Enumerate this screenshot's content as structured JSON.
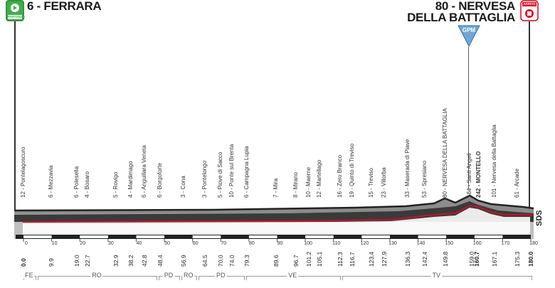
{
  "header": {
    "start_name": "6 - FERRARA",
    "finish_name_line1": "80 - NERVESA",
    "finish_name_line2": "DELLA BATTAGLIA",
    "start_badge_label": "PARTENZA",
    "finish_badge_label": "ARRIVO",
    "gpm_label": "GPM",
    "sds_label": "SDS"
  },
  "colors": {
    "start_badge": "#3fae49",
    "finish_badge": "#e2001a",
    "profile_gray": "#8c8c8c",
    "profile_dark": "#3a3a3a",
    "road_red": "#c8102e",
    "gpm_blue": "#6fa8d8"
  },
  "waypoints": [
    {
      "label": "12 - Pontelagoscuro",
      "km": 0.0
    },
    {
      "label": "6 - Mezzavia",
      "km": 9.9
    },
    {
      "label": "6 - Polesella",
      "km": 19.0
    },
    {
      "label": "4 - Bosaro",
      "km": 22.7
    },
    {
      "label": "5 - Rovigo",
      "km": 32.9
    },
    {
      "label": "4 - Mardimago",
      "km": 38.2
    },
    {
      "label": "6 - Anguillara Veneta",
      "km": 42.8
    },
    {
      "label": "6 - Borgoforte",
      "km": 48.4
    },
    {
      "label": "3 - Cona",
      "km": 56.9
    },
    {
      "label": "3 - Pontelongo",
      "km": 64.5
    },
    {
      "label": "5 - Piove di Sacco",
      "km": 70.0
    },
    {
      "label": "10 - Ponte sul Brenta",
      "km": 74.0
    },
    {
      "label": "6 - Campagna Lupia",
      "km": 79.3
    },
    {
      "label": "7 - Mira",
      "km": 89.6
    },
    {
      "label": "8 - Mirano",
      "km": 96.7
    },
    {
      "label": "10 - Maerne",
      "km": 101.2
    },
    {
      "label": "12 - Martellago",
      "km": 105.1
    },
    {
      "label": "16 - Zero Branco",
      "km": 112.3
    },
    {
      "label": "19 - Quinto di Treviso",
      "km": 116.7
    },
    {
      "label": "15 - Treviso",
      "km": 123.4
    },
    {
      "label": "23 - Villorba",
      "km": 127.9
    },
    {
      "label": "33 - Maserada di Piave",
      "km": 136.3
    },
    {
      "label": "53 - Spresiano",
      "km": 142.4
    },
    {
      "label": "80 - NERVESA DELLA BATTAGLIA",
      "km": 149.8
    },
    {
      "label": "184 - Santi Angeli",
      "km": 159.0
    },
    {
      "label": "242 - MONTELLO",
      "km": 160.7
    },
    {
      "label": "101 - Nervesa della Battaglia",
      "km": 167.1
    },
    {
      "label": "61 - Arcade",
      "km": 175.3
    },
    {
      "label": "",
      "km": 180.0
    }
  ],
  "km_labels": [
    "0.0",
    "9.9",
    "19.0",
    "22.7",
    "32.9",
    "38.2",
    "42.8",
    "48.4",
    "56.9",
    "64.5",
    "70.0",
    "74.0",
    "79.3",
    "89.6",
    "96.7",
    "101.2",
    "105.1",
    "112.3",
    "116.7",
    "123.4",
    "127.9",
    "136.3",
    "142.4",
    "149.8",
    "159.0",
    "160.7",
    "167.1",
    "175.3",
    "180.0"
  ],
  "scale_ticks": [
    "0",
    "10",
    "20",
    "30",
    "40",
    "50",
    "60",
    "70",
    "80",
    "90",
    "100",
    "110",
    "120",
    "130",
    "140",
    "150",
    "160",
    "170",
    "180"
  ],
  "provinces": [
    {
      "label": "FE",
      "from": 0,
      "to": 4
    },
    {
      "label": "RO",
      "from": 5,
      "to": 47
    },
    {
      "label": "PD",
      "from": 48,
      "to": 55
    },
    {
      "label": "RO",
      "from": 56,
      "to": 61
    },
    {
      "label": "PD",
      "from": 62,
      "to": 78
    },
    {
      "label": "VE",
      "from": 79,
      "to": 112
    },
    {
      "label": "TV",
      "from": 113,
      "to": 180
    }
  ]
}
